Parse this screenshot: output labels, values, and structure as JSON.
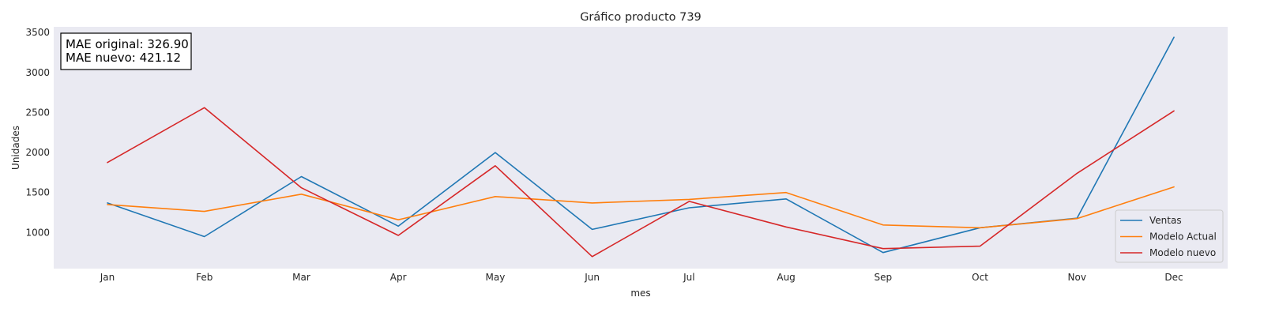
{
  "chart_data": {
    "type": "line",
    "title": "Gráfico producto 739",
    "xlabel": "mes",
    "ylabel": "Unidades",
    "categories": [
      "Jan",
      "Feb",
      "Mar",
      "Apr",
      "May",
      "Jun",
      "Jul",
      "Aug",
      "Sep",
      "Oct",
      "Nov",
      "Dec"
    ],
    "ylim": [
      550,
      3570
    ],
    "yticks": [
      1000,
      1500,
      2000,
      2500,
      3000,
      3500
    ],
    "grid": false,
    "legend_position": "lower-right",
    "plot_background": "#eaeaf2",
    "series": [
      {
        "name": "Ventas",
        "color": "#1f77b4",
        "values": [
          1370,
          950,
          1700,
          1080,
          2000,
          1040,
          1310,
          1420,
          750,
          1060,
          1180,
          3440
        ]
      },
      {
        "name": "Modelo Actual",
        "color": "#ff7f0e",
        "values": [
          1350,
          1265,
          1480,
          1160,
          1450,
          1370,
          1415,
          1500,
          1095,
          1060,
          1175,
          1570
        ]
      },
      {
        "name": "Modelo nuevo",
        "color": "#d62728",
        "values": [
          1875,
          2560,
          1560,
          965,
          1835,
          700,
          1390,
          1070,
          800,
          830,
          1740,
          2520
        ]
      }
    ],
    "annotation": {
      "lines": [
        "MAE original: 326.90",
        "MAE nuevo: 421.12"
      ],
      "position": "top-left"
    }
  }
}
